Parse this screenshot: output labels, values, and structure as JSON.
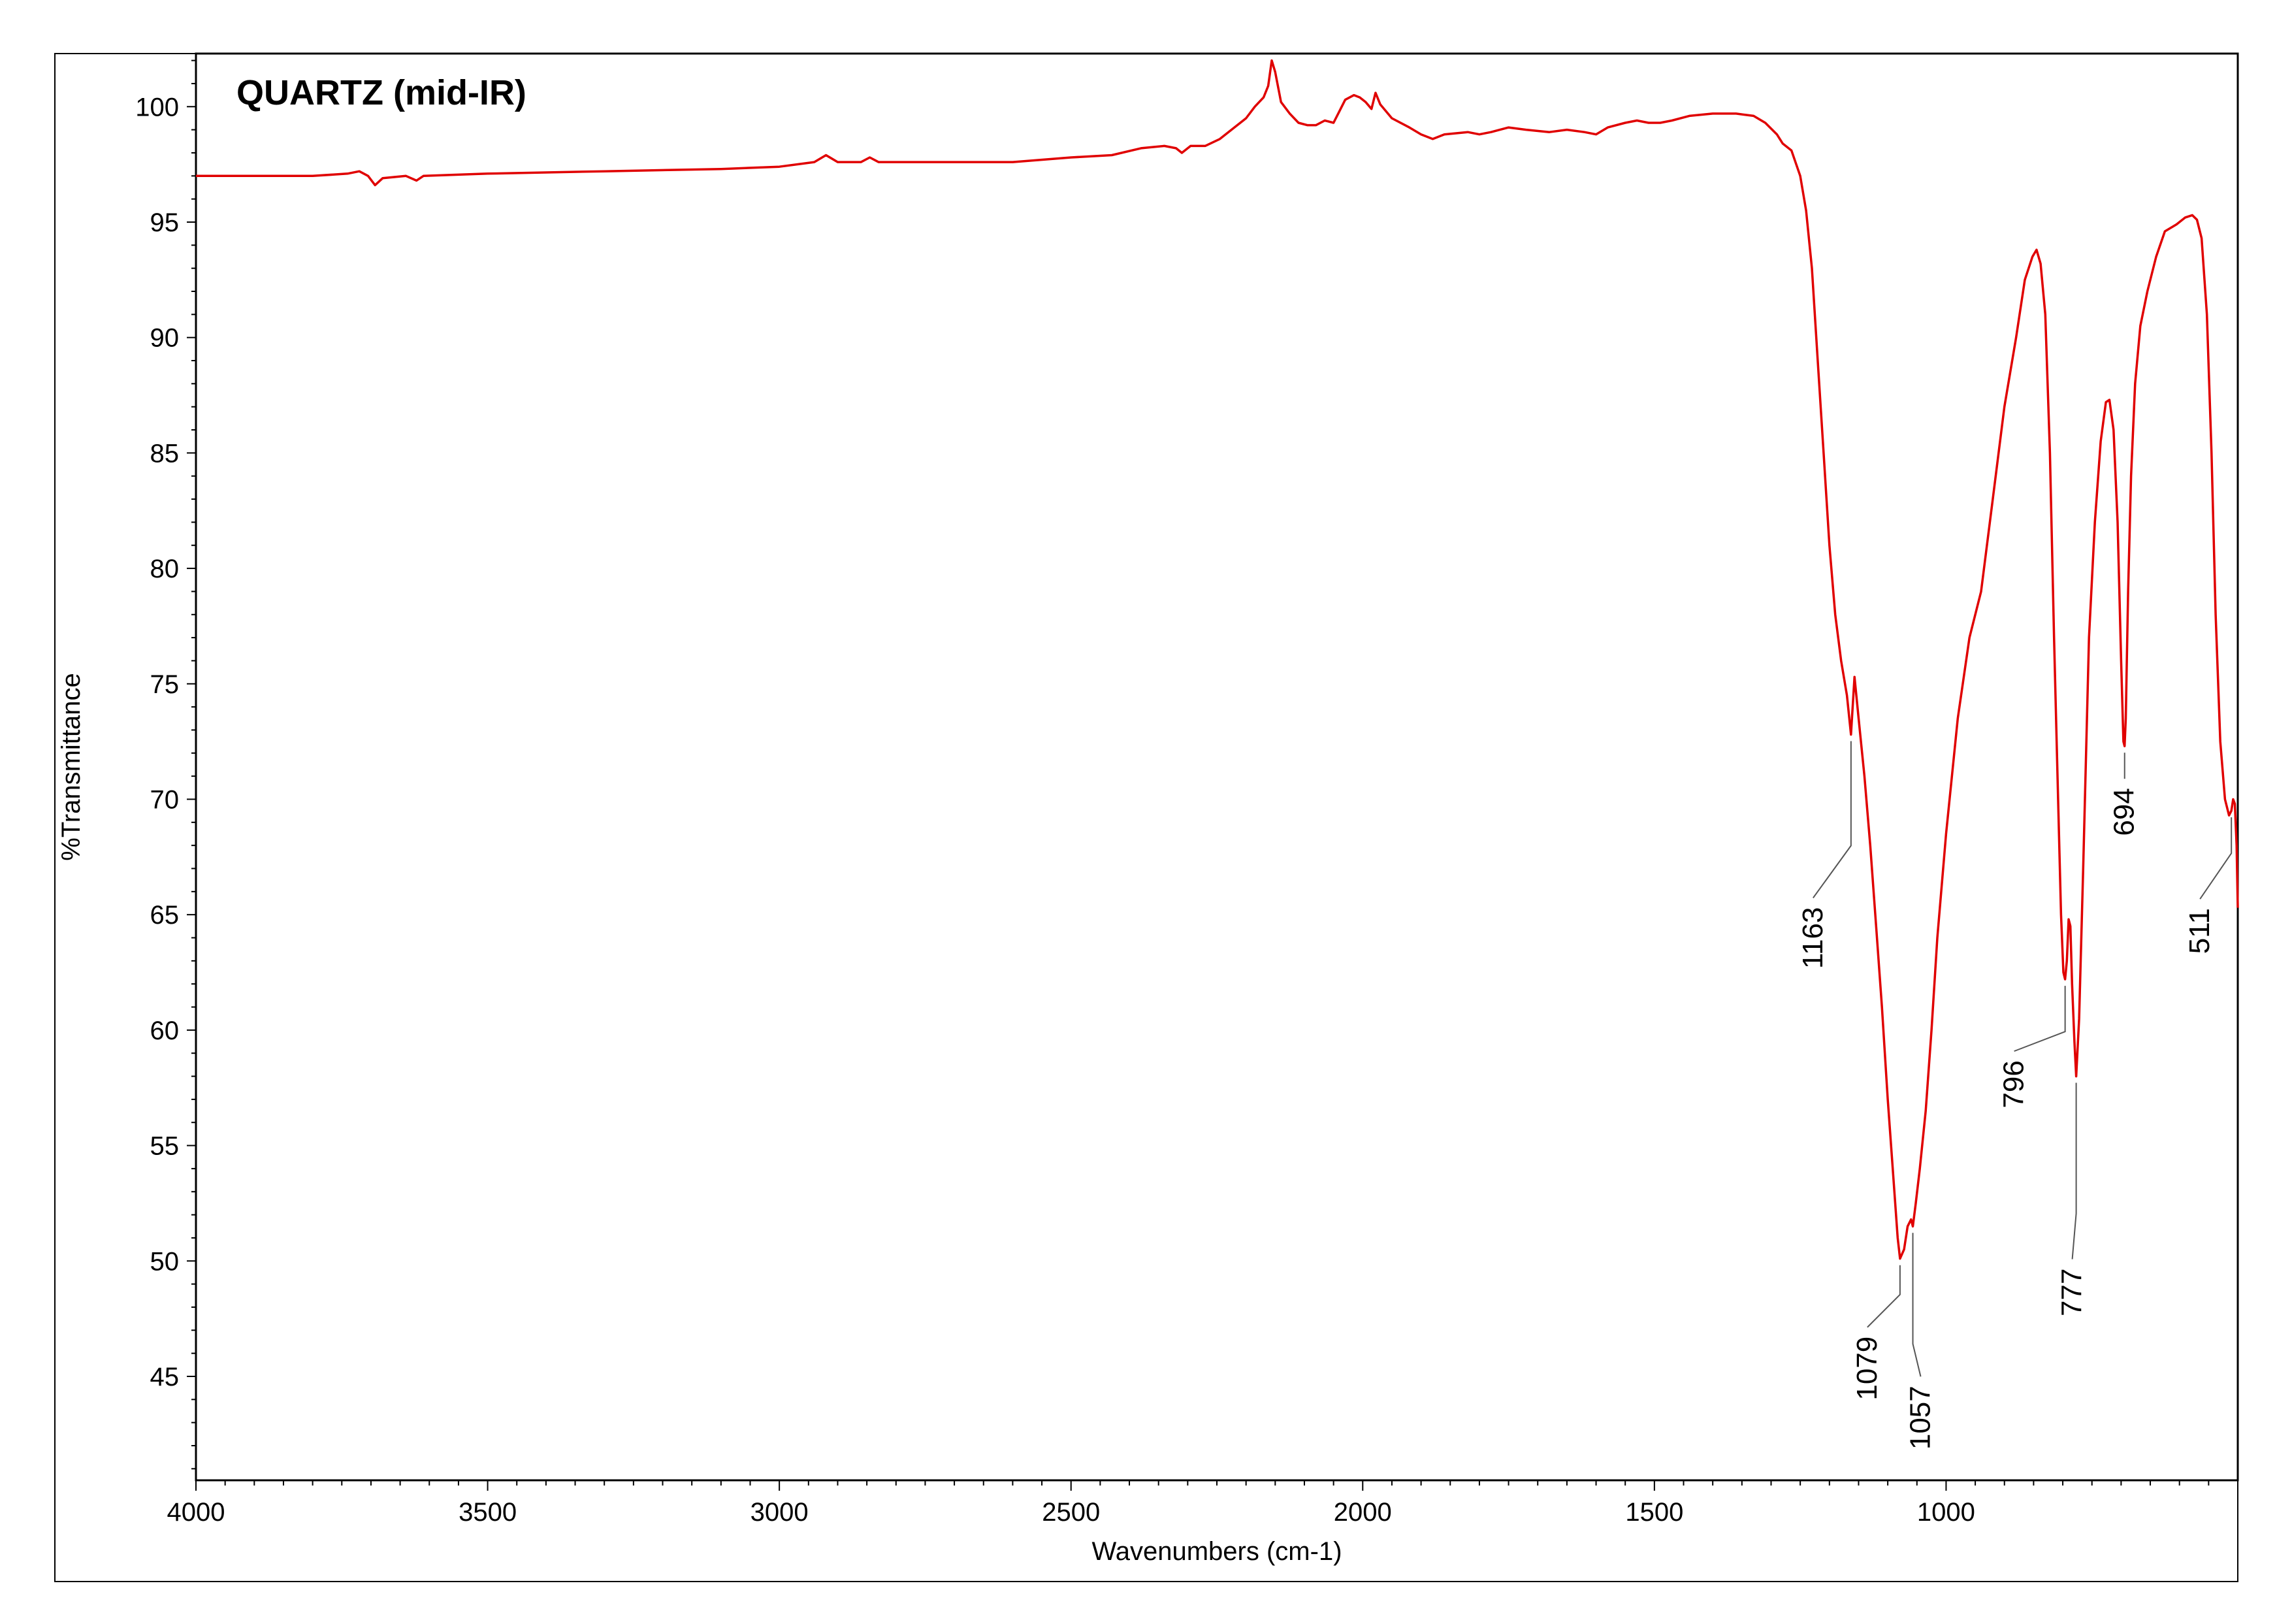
{
  "chart_data": {
    "type": "line",
    "title": "QUARTZ (mid-IR)",
    "xlabel": "Wavenumbers (cm-1)",
    "ylabel": "%Transmittance",
    "xlim": [
      4000,
      500
    ],
    "ylim": [
      40.5,
      102.3
    ],
    "x_reversed": true,
    "grid": false,
    "x_ticks": [
      4000,
      3500,
      3000,
      2500,
      2000,
      1500,
      1000
    ],
    "y_ticks": [
      45,
      50,
      55,
      60,
      65,
      70,
      75,
      80,
      85,
      90,
      95,
      100
    ],
    "series": [
      {
        "color": "#e00000",
        "points": [
          [
            4000,
            97.0
          ],
          [
            3900,
            97.0
          ],
          [
            3800,
            97.0
          ],
          [
            3740,
            97.1
          ],
          [
            3720,
            97.2
          ],
          [
            3705,
            97.0
          ],
          [
            3693,
            96.6
          ],
          [
            3680,
            96.9
          ],
          [
            3640,
            97.0
          ],
          [
            3622,
            96.8
          ],
          [
            3610,
            97.0
          ],
          [
            3500,
            97.1
          ],
          [
            3300,
            97.2
          ],
          [
            3100,
            97.3
          ],
          [
            3000,
            97.4
          ],
          [
            2940,
            97.6
          ],
          [
            2920,
            97.9
          ],
          [
            2900,
            97.6
          ],
          [
            2860,
            97.6
          ],
          [
            2845,
            97.8
          ],
          [
            2830,
            97.6
          ],
          [
            2700,
            97.6
          ],
          [
            2600,
            97.6
          ],
          [
            2500,
            97.8
          ],
          [
            2430,
            97.9
          ],
          [
            2380,
            98.2
          ],
          [
            2340,
            98.3
          ],
          [
            2320,
            98.2
          ],
          [
            2310,
            98.0
          ],
          [
            2295,
            98.3
          ],
          [
            2270,
            98.3
          ],
          [
            2245,
            98.6
          ],
          [
            2220,
            99.1
          ],
          [
            2200,
            99.5
          ],
          [
            2185,
            100.0
          ],
          [
            2170,
            100.4
          ],
          [
            2162,
            100.9
          ],
          [
            2156,
            102.0
          ],
          [
            2150,
            101.5
          ],
          [
            2140,
            100.2
          ],
          [
            2125,
            99.7
          ],
          [
            2110,
            99.3
          ],
          [
            2095,
            99.2
          ],
          [
            2080,
            99.2
          ],
          [
            2065,
            99.4
          ],
          [
            2050,
            99.3
          ],
          [
            2040,
            99.8
          ],
          [
            2030,
            100.3
          ],
          [
            2015,
            100.5
          ],
          [
            2005,
            100.4
          ],
          [
            1995,
            100.2
          ],
          [
            1985,
            99.9
          ],
          [
            1978,
            100.6
          ],
          [
            1970,
            100.1
          ],
          [
            1950,
            99.5
          ],
          [
            1920,
            99.1
          ],
          [
            1900,
            98.8
          ],
          [
            1880,
            98.6
          ],
          [
            1860,
            98.8
          ],
          [
            1820,
            98.9
          ],
          [
            1800,
            98.8
          ],
          [
            1780,
            98.9
          ],
          [
            1750,
            99.1
          ],
          [
            1720,
            99.0
          ],
          [
            1680,
            98.9
          ],
          [
            1650,
            99.0
          ],
          [
            1620,
            98.9
          ],
          [
            1600,
            98.8
          ],
          [
            1580,
            99.1
          ],
          [
            1550,
            99.3
          ],
          [
            1530,
            99.4
          ],
          [
            1510,
            99.3
          ],
          [
            1490,
            99.3
          ],
          [
            1470,
            99.4
          ],
          [
            1440,
            99.6
          ],
          [
            1400,
            99.7
          ],
          [
            1360,
            99.7
          ],
          [
            1330,
            99.6
          ],
          [
            1310,
            99.3
          ],
          [
            1290,
            98.8
          ],
          [
            1280,
            98.4
          ],
          [
            1265,
            98.1
          ],
          [
            1250,
            97.0
          ],
          [
            1240,
            95.5
          ],
          [
            1230,
            93.0
          ],
          [
            1220,
            89.0
          ],
          [
            1210,
            85.0
          ],
          [
            1200,
            81.0
          ],
          [
            1190,
            78.0
          ],
          [
            1180,
            76.0
          ],
          [
            1170,
            74.5
          ],
          [
            1163,
            72.8
          ],
          [
            1157,
            75.3
          ],
          [
            1150,
            73.5
          ],
          [
            1140,
            71.0
          ],
          [
            1130,
            68.0
          ],
          [
            1120,
            64.5
          ],
          [
            1110,
            61.0
          ],
          [
            1100,
            57.0
          ],
          [
            1090,
            53.5
          ],
          [
            1083,
            51.0
          ],
          [
            1079,
            50.1
          ],
          [
            1072,
            50.5
          ],
          [
            1066,
            51.5
          ],
          [
            1060,
            51.8
          ],
          [
            1057,
            51.5
          ],
          [
            1052,
            52.5
          ],
          [
            1045,
            54.0
          ],
          [
            1035,
            56.5
          ],
          [
            1025,
            60.0
          ],
          [
            1015,
            64.0
          ],
          [
            1000,
            68.5
          ],
          [
            980,
            73.5
          ],
          [
            960,
            77.0
          ],
          [
            940,
            79.0
          ],
          [
            920,
            83.0
          ],
          [
            900,
            87.0
          ],
          [
            880,
            90.0
          ],
          [
            865,
            92.5
          ],
          [
            852,
            93.5
          ],
          [
            845,
            93.8
          ],
          [
            838,
            93.2
          ],
          [
            830,
            91.0
          ],
          [
            822,
            85.0
          ],
          [
            815,
            77.0
          ],
          [
            808,
            70.0
          ],
          [
            803,
            65.0
          ],
          [
            799,
            62.5
          ],
          [
            796,
            62.2
          ],
          [
            793,
            63.0
          ],
          [
            790,
            64.8
          ],
          [
            787,
            64.5
          ],
          [
            784,
            62.0
          ],
          [
            780,
            59.5
          ],
          [
            777,
            58.0
          ],
          [
            772,
            60.5
          ],
          [
            765,
            67.0
          ],
          [
            755,
            77.0
          ],
          [
            745,
            82.0
          ],
          [
            735,
            85.5
          ],
          [
            726,
            87.2
          ],
          [
            720,
            87.3
          ],
          [
            713,
            86.0
          ],
          [
            706,
            82.0
          ],
          [
            700,
            76.0
          ],
          [
            696,
            72.5
          ],
          [
            694,
            72.3
          ],
          [
            692,
            73.5
          ],
          [
            688,
            79.0
          ],
          [
            683,
            84.0
          ],
          [
            676,
            88.0
          ],
          [
            667,
            90.5
          ],
          [
            655,
            92.0
          ],
          [
            640,
            93.5
          ],
          [
            625,
            94.6
          ],
          [
            605,
            94.9
          ],
          [
            590,
            95.2
          ],
          [
            578,
            95.3
          ],
          [
            570,
            95.1
          ],
          [
            562,
            94.3
          ],
          [
            553,
            91.0
          ],
          [
            545,
            85.0
          ],
          [
            538,
            78.0
          ],
          [
            530,
            72.5
          ],
          [
            522,
            70.0
          ],
          [
            515,
            69.3
          ],
          [
            511,
            69.5
          ],
          [
            508,
            70.0
          ],
          [
            505,
            69.8
          ],
          [
            502,
            68.0
          ],
          [
            500,
            65.3
          ]
        ]
      }
    ],
    "annotations": [
      {
        "label": "1163",
        "x": 1163,
        "y": 72.8
      },
      {
        "label": "1079",
        "x": 1079,
        "y": 50.1
      },
      {
        "label": "1057",
        "x": 1057,
        "y": 51.5
      },
      {
        "label": "796",
        "x": 796,
        "y": 62.2
      },
      {
        "label": "777",
        "x": 777,
        "y": 58.0
      },
      {
        "label": "694",
        "x": 694,
        "y": 72.3
      },
      {
        "label": "511",
        "x": 511,
        "y": 69.5
      }
    ]
  }
}
